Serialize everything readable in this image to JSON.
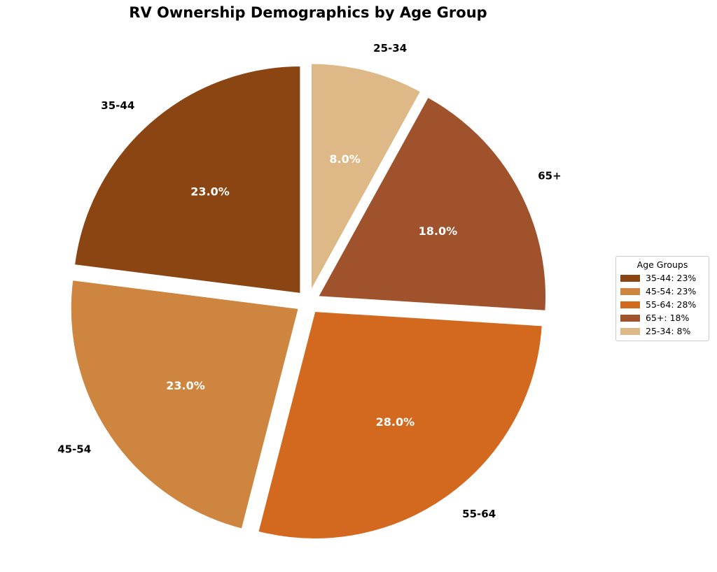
{
  "chart_data": {
    "type": "pie",
    "title": "RV Ownership Demographics by Age Group",
    "categories": [
      "35-44",
      "45-54",
      "55-64",
      "65+",
      "25-34"
    ],
    "values": [
      23,
      23,
      28,
      18,
      8
    ],
    "percent_labels": [
      "23.0%",
      "23.0%",
      "28.0%",
      "18.0%",
      "8.0%"
    ],
    "colors": [
      "#8B4513",
      "#CD853F",
      "#D2691E",
      "#A0522D",
      "#DEB887"
    ],
    "start_angle_deg": 90,
    "direction": "counterclockwise",
    "exploded": true,
    "legend": {
      "title": "Age Groups",
      "placement": "right",
      "entries": [
        "35-44: 23%",
        "45-54: 23%",
        "55-64: 28%",
        "65+: 18%",
        "25-34: 8%"
      ]
    }
  }
}
